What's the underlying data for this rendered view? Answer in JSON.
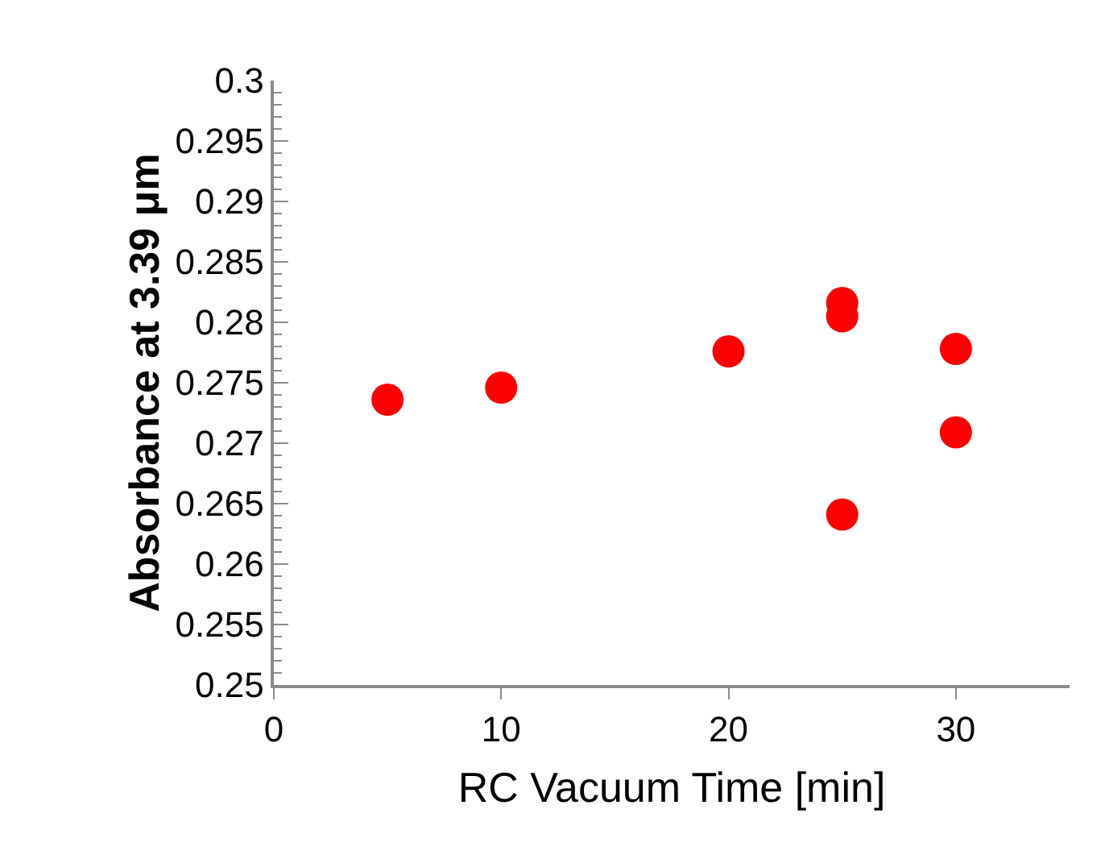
{
  "chart_data": {
    "type": "scatter",
    "xlabel": "RC Vacuum Time [min]",
    "ylabel": "Absorbance at 3.39 μm",
    "x": [
      5,
      10,
      20,
      25,
      25,
      25,
      30,
      30
    ],
    "series": [
      {
        "color": "#ff0000",
        "values": [
          0.2736,
          0.2746,
          0.2776,
          0.2816,
          0.2805,
          0.2641,
          0.2778,
          0.2709
        ]
      }
    ],
    "xlim": [
      0,
      35
    ],
    "xticks": [
      0,
      10,
      20,
      30
    ],
    "ylim": [
      0.25,
      0.3
    ],
    "yticks": [
      0.25,
      0.255,
      0.26,
      0.265,
      0.27,
      0.275,
      0.28,
      0.285,
      0.29,
      0.295,
      0.3
    ],
    "marker": "circle"
  }
}
